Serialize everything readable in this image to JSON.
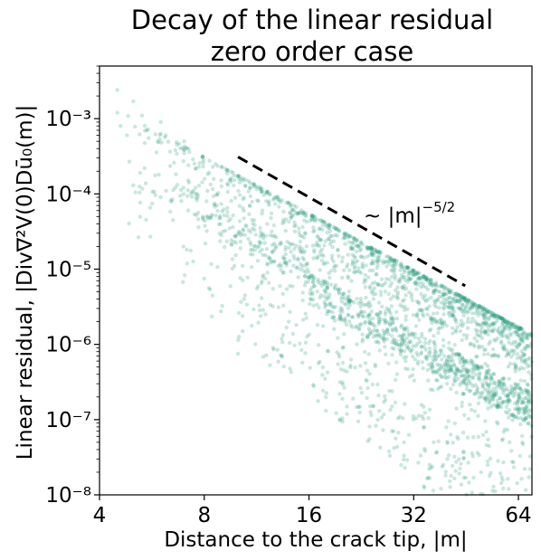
{
  "chart_data": {
    "type": "scatter",
    "title": [
      "Decay of the linear residual",
      "zero order case"
    ],
    "xlabel": "Distance to the crack tip, |m|",
    "ylabel": "Linear residual, |Div∇²V(0)Dū₀(m)|",
    "xscale": "log2",
    "yscale": "log10",
    "xlim": [
      4,
      70
    ],
    "ylim": [
      1e-08,
      0.005
    ],
    "xticks": [
      4,
      8,
      16,
      32,
      64
    ],
    "xtick_labels": [
      "4",
      "8",
      "16",
      "32",
      "64"
    ],
    "yticks": [
      1e-08,
      1e-07,
      1e-06,
      1e-05,
      0.0001,
      0.001
    ],
    "ytick_labels": [
      "10⁻⁸",
      "10⁻⁷",
      "10⁻⁶",
      "10⁻⁵",
      "10⁻⁴",
      "10⁻³"
    ],
    "grid": false,
    "marker_color": "#2ca07f",
    "marker_alpha": 0.25,
    "reference_line": {
      "x": [
        10,
        45
      ],
      "y": [
        0.00031,
        6e-06
      ],
      "style": "dashed",
      "color": "#000000",
      "label": "~ |m|",
      "exponent": "−5/2"
    },
    "series": [
      {
        "description_points": "scatter cloud: upper envelope follows |m|^-2.5 from ~1.3e-3 at m=4.5 to ~1.6e-6 at m=68; lower band down to ~1e-8",
        "upper_envelope": {
          "x": [
            4.5,
            8,
            16,
            32,
            64
          ],
          "y": [
            0.0013,
            0.00026,
            4.3e-05,
            7.5e-06,
            1.6e-06
          ]
        },
        "mid_band": {
          "x": [
            8,
            16,
            32,
            64
          ],
          "y": [
            9e-06,
            1.4e-06,
            4e-07,
            1.6e-07
          ]
        },
        "sample_points": [
          [
            4.5,
            0.0024
          ],
          [
            4.5,
            0.0012
          ],
          [
            4.6,
            0.0008
          ],
          [
            4.8,
            0.0006
          ],
          [
            5.0,
            0.0017
          ],
          [
            5.0,
            0.00013
          ],
          [
            5.3,
            0.0011
          ],
          [
            5.6,
            2.7e-05
          ],
          [
            6.0,
            0.0009
          ],
          [
            6.2,
            0.0006
          ],
          [
            7.0,
            0.0005
          ],
          [
            8.0,
            7.5e-06
          ],
          [
            10.0,
            7.5e-07
          ],
          [
            14.0,
            2e-06
          ],
          [
            20.0,
            9e-07
          ],
          [
            24.0,
            1.5e-07
          ],
          [
            30.0,
            5e-08
          ],
          [
            40.0,
            3e-08
          ],
          [
            50.0,
            2e-08
          ],
          [
            60.0,
            1.2e-08
          ]
        ]
      }
    ]
  }
}
